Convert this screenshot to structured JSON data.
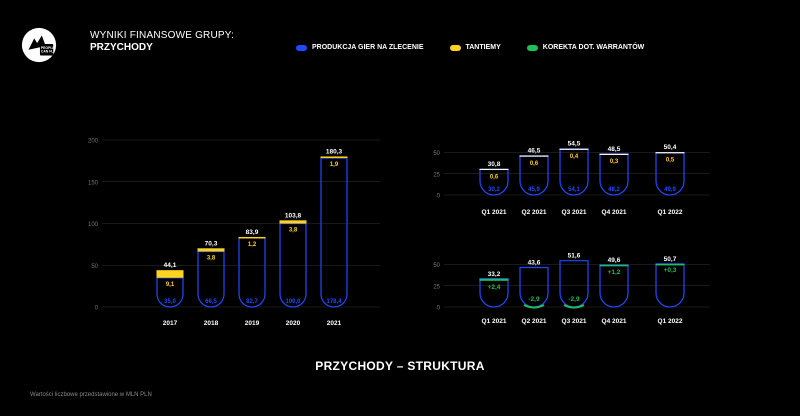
{
  "header": {
    "logo_text": "PEOPLE CAN FLY",
    "title_line1": "WYNIKI FINANSOWE GRUPY:",
    "title_line2": "PRZYCHODY"
  },
  "legend": [
    {
      "label": "PRODUKCJA GIER NA ZLECENIE",
      "color": "#1f4bff"
    },
    {
      "label": "TANTIEMY",
      "color": "#ffd21f"
    },
    {
      "label": "KOREKTA DOT. WARRANTÓW",
      "color": "#1fbf5a"
    }
  ],
  "subtitle": "PRZYCHODY – STRUKTURA",
  "footnote": "Wartości liczbowe przedstawione w MLN PLN",
  "chart_data": [
    {
      "type": "bar",
      "name": "annual",
      "categories": [
        "2017",
        "2018",
        "2019",
        "2020",
        "2021"
      ],
      "series": [
        {
          "name": "PRODUKCJA GIER NA ZLECENIE",
          "values": [
            35.0,
            66.5,
            82.7,
            100.0,
            178.4
          ],
          "labels": [
            "35,0",
            "66,5",
            "82,7",
            "100,0",
            "178,4"
          ]
        },
        {
          "name": "TANTIEMY",
          "values": [
            9.1,
            3.8,
            1.2,
            3.8,
            1.9
          ],
          "labels": [
            "9,1",
            "3,8",
            "1,2",
            "3,8",
            "1,9"
          ]
        }
      ],
      "totals": [
        44.1,
        70.3,
        83.9,
        103.8,
        180.3
      ],
      "total_labels": [
        "44,1",
        "70,3",
        "83,9",
        "103,8",
        "180,3"
      ],
      "yticks": [
        "0",
        "50",
        "100",
        "150",
        "200"
      ],
      "ylim": [
        0,
        200
      ]
    },
    {
      "type": "bar",
      "name": "quarterly-royalties",
      "categories": [
        "Q1 2021",
        "Q2 2021",
        "Q3 2021",
        "Q4 2021",
        "Q1 2022"
      ],
      "series": [
        {
          "name": "PRODUKCJA GIER NA ZLECENIE",
          "values": [
            30.2,
            45.9,
            54.1,
            48.2,
            49.9
          ],
          "labels": [
            "30,2",
            "45,9",
            "54,1",
            "48,2",
            "49,9"
          ]
        },
        {
          "name": "TANTIEMY",
          "values": [
            0.6,
            0.6,
            0.4,
            0.3,
            0.5
          ],
          "labels": [
            "0,6",
            "0,6",
            "0,4",
            "0,3",
            "0,5"
          ]
        }
      ],
      "totals": [
        30.8,
        46.5,
        54.5,
        48.5,
        50.4
      ],
      "total_labels": [
        "30,8",
        "46,5",
        "54,5",
        "48,5",
        "50,4"
      ],
      "yticks": [
        "0",
        "25",
        "50"
      ],
      "ylim": [
        0,
        60
      ]
    },
    {
      "type": "bar",
      "name": "quarterly-warrants",
      "categories": [
        "Q1 2021",
        "Q2 2021",
        "Q3 2021",
        "Q4 2021",
        "Q1 2022"
      ],
      "series": [
        {
          "name": "KOREKTA DOT. WARRANTÓW",
          "values": [
            2.4,
            -2.9,
            -2.9,
            1.2,
            0.3
          ],
          "labels": [
            "+2,4",
            "-2,9",
            "-2,9",
            "+1,2",
            "+0,3"
          ]
        }
      ],
      "totals": [
        33.2,
        43.6,
        51.6,
        49.6,
        50.7
      ],
      "total_labels": [
        "33,2",
        "43,6",
        "51,6",
        "49,6",
        "50,7"
      ],
      "yticks": [
        "0",
        "25",
        "50"
      ],
      "ylim": [
        0,
        60
      ]
    }
  ]
}
